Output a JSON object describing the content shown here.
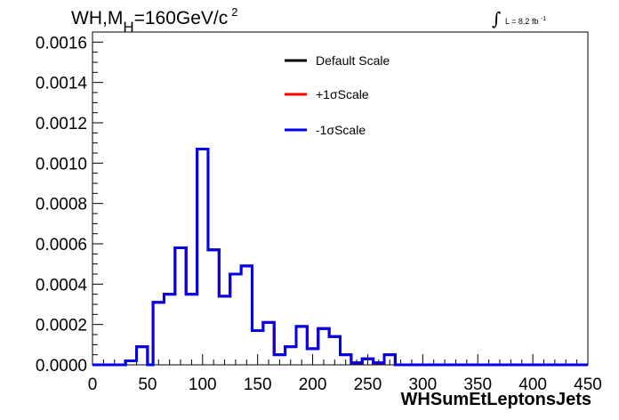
{
  "header": {
    "title_base": "WH,M",
    "title_sub": "H",
    "title_rest": "=160GeV/c",
    "title_sup": "2",
    "lumi_text": "L = 8.2 fb",
    "lumi_sup": "-1"
  },
  "chart_data": {
    "type": "line",
    "step": true,
    "xlabel": "WHSumEtLeptonsJets",
    "ylabel": "",
    "xlim": [
      0,
      450
    ],
    "ylim": [
      0,
      0.00165
    ],
    "x_ticks": [
      "0",
      "50",
      "100",
      "150",
      "200",
      "250",
      "300",
      "350",
      "400",
      "450"
    ],
    "y_ticks": [
      "0.0000",
      "0.0002",
      "0.0004",
      "0.0006",
      "0.0008",
      "0.0010",
      "0.0012",
      "0.0014",
      "0.0016"
    ],
    "grid": false,
    "legend_position": "top-center",
    "bin_edges": [
      0,
      5,
      10,
      15,
      20,
      25,
      30,
      35,
      40,
      45,
      50,
      55,
      60,
      65,
      70,
      75,
      80,
      85,
      90,
      95,
      100,
      105,
      110,
      115,
      120,
      125,
      130,
      135,
      140,
      145,
      150,
      155,
      160,
      165,
      170,
      175,
      180,
      185,
      190,
      195,
      200,
      205,
      210,
      215,
      220,
      225,
      230,
      235,
      240,
      245,
      250,
      255,
      260,
      265,
      270,
      275,
      280,
      285,
      290,
      295,
      300,
      305,
      310,
      315,
      320,
      325,
      330,
      335,
      340,
      345,
      350,
      355,
      360,
      365,
      370,
      375,
      380,
      385,
      390,
      395,
      400,
      405,
      410,
      415,
      420,
      425,
      430,
      435,
      440,
      445,
      450
    ],
    "series": [
      {
        "name": "Default Scale",
        "color": "#000000",
        "values": [
          0,
          0,
          0,
          0,
          0,
          0,
          2e-05,
          2e-05,
          9e-05,
          9e-05,
          0,
          0.00031,
          0.00031,
          0.00035,
          0.00035,
          0.00058,
          0.00058,
          0.00035,
          0.00035,
          0.00107,
          0.00107,
          0.00057,
          0.00057,
          0.00034,
          0.00034,
          0.00045,
          0.00045,
          0.00049,
          0.00049,
          0.00017,
          0.00017,
          0.00021,
          0.00021,
          5e-05,
          5e-05,
          9e-05,
          9e-05,
          0.00019,
          0.00019,
          8e-05,
          8e-05,
          0.00018,
          0.00018,
          0.00014,
          0.00014,
          5e-05,
          5e-05,
          1e-05,
          1e-05,
          3e-05,
          3e-05,
          1e-05,
          1e-05,
          5e-05,
          5e-05,
          0,
          0,
          0,
          0,
          0,
          0,
          0,
          0,
          0,
          0,
          0,
          0,
          0,
          0,
          0,
          0,
          0,
          0,
          0,
          0,
          0,
          0,
          0,
          0,
          0,
          0,
          0,
          0,
          0,
          0,
          0,
          0,
          0,
          0,
          0
        ]
      },
      {
        "name": "+1σScale",
        "color": "#ff0000",
        "values": [
          0,
          0,
          0,
          0,
          0,
          0,
          2e-05,
          2e-05,
          9e-05,
          9e-05,
          0,
          0.00031,
          0.00031,
          0.00035,
          0.00035,
          0.00058,
          0.00058,
          0.00035,
          0.00035,
          0.00107,
          0.00107,
          0.00057,
          0.00057,
          0.00034,
          0.00034,
          0.00045,
          0.00045,
          0.00049,
          0.00049,
          0.00017,
          0.00017,
          0.00021,
          0.00021,
          5e-05,
          5e-05,
          9e-05,
          9e-05,
          0.00019,
          0.00019,
          8e-05,
          8e-05,
          0.00018,
          0.00018,
          0.00014,
          0.00014,
          5e-05,
          5e-05,
          1e-05,
          1e-05,
          3e-05,
          3e-05,
          1e-05,
          1e-05,
          5e-05,
          5e-05,
          0,
          0,
          0,
          0,
          0,
          0,
          0,
          0,
          0,
          0,
          0,
          0,
          0,
          0,
          0,
          0,
          0,
          0,
          0,
          0,
          0,
          0,
          0,
          0,
          0,
          0,
          0,
          0,
          0,
          0,
          0,
          0,
          0,
          0,
          0
        ]
      },
      {
        "name": "-1σScale",
        "color": "#0000ee",
        "values": [
          0,
          0,
          0,
          0,
          0,
          0,
          2e-05,
          2e-05,
          9e-05,
          9e-05,
          0,
          0.00031,
          0.00031,
          0.00035,
          0.00035,
          0.00058,
          0.00058,
          0.00035,
          0.00035,
          0.00107,
          0.00107,
          0.00057,
          0.00057,
          0.00034,
          0.00034,
          0.00045,
          0.00045,
          0.00049,
          0.00049,
          0.00017,
          0.00017,
          0.00021,
          0.00021,
          5e-05,
          5e-05,
          9e-05,
          9e-05,
          0.00019,
          0.00019,
          8e-05,
          8e-05,
          0.00018,
          0.00018,
          0.00014,
          0.00014,
          5e-05,
          5e-05,
          1e-05,
          1e-05,
          3e-05,
          3e-05,
          1e-05,
          1e-05,
          5e-05,
          5e-05,
          0,
          0,
          0,
          0,
          0,
          0,
          0,
          0,
          0,
          0,
          0,
          0,
          0,
          0,
          0,
          0,
          0,
          0,
          0,
          0,
          0,
          0,
          0,
          0,
          0,
          0,
          0,
          0,
          0,
          0,
          0,
          0,
          0,
          0,
          0
        ]
      }
    ]
  }
}
